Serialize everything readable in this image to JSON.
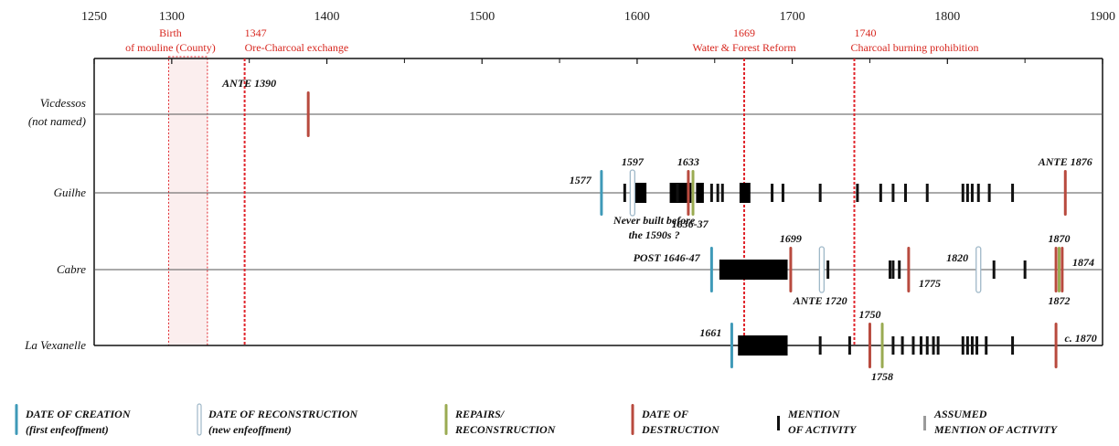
{
  "chart_data": {
    "type": "timeline",
    "xlim": [
      1250,
      1900
    ],
    "ticks": [
      1250,
      1300,
      1400,
      1500,
      1600,
      1700,
      1800,
      1900
    ],
    "minor_ticks": [
      1350,
      1450,
      1550,
      1650,
      1750,
      1850
    ],
    "grid": false,
    "events": [
      {
        "id": "county",
        "line1": "Birth",
        "line2": "of mouline (County)",
        "x_start": 1298,
        "x_end": 1323
      },
      {
        "id": "ore",
        "year_label": "1347",
        "text": "Ore-Charcoal exchange",
        "x": 1347
      },
      {
        "id": "water",
        "year_label": "1669",
        "text": "Water & Forest Reform",
        "x": 1669
      },
      {
        "id": "charcoal",
        "year_label": "1740",
        "text": "Charcoal burning prohibition",
        "x": 1740
      }
    ],
    "sites": [
      {
        "name_line1": "Vicdessos",
        "name_line2": "(not named)",
        "marks": [
          {
            "x": 1388,
            "kind": "destruction"
          }
        ],
        "bars": [],
        "annotations": [
          {
            "text": "ANTE 1390",
            "x": 1350,
            "pos": "above"
          }
        ]
      },
      {
        "name_line1": "Guilhe",
        "name_line2": "",
        "marks": [
          {
            "x": 1577,
            "kind": "creation"
          },
          {
            "x": 1597,
            "kind": "reconstruction"
          },
          {
            "x": 1633,
            "kind": "destruction"
          },
          {
            "x": 1636,
            "kind": "repairs"
          },
          {
            "x": 1592,
            "kind": "activity"
          },
          {
            "x": 1626,
            "kind": "activity"
          },
          {
            "x": 1648,
            "kind": "activity"
          },
          {
            "x": 1652,
            "kind": "activity"
          },
          {
            "x": 1655,
            "kind": "activity"
          },
          {
            "x": 1687,
            "kind": "activity"
          },
          {
            "x": 1694,
            "kind": "activity"
          },
          {
            "x": 1718,
            "kind": "activity"
          },
          {
            "x": 1742,
            "kind": "activity"
          },
          {
            "x": 1757,
            "kind": "activity"
          },
          {
            "x": 1765,
            "kind": "activity"
          },
          {
            "x": 1773,
            "kind": "activity"
          },
          {
            "x": 1787,
            "kind": "activity"
          },
          {
            "x": 1810,
            "kind": "activity"
          },
          {
            "x": 1813,
            "kind": "activity"
          },
          {
            "x": 1816,
            "kind": "activity"
          },
          {
            "x": 1820,
            "kind": "activity"
          },
          {
            "x": 1827,
            "kind": "activity"
          },
          {
            "x": 1842,
            "kind": "activity"
          },
          {
            "x": 1876,
            "kind": "destruction"
          }
        ],
        "bars": [
          [
            1596,
            1606
          ],
          [
            1621,
            1635
          ],
          [
            1638,
            1643
          ],
          [
            1666,
            1673
          ]
        ],
        "annotations": [
          {
            "text": "1577",
            "x": 1574,
            "pos": "left"
          },
          {
            "text": "1597",
            "x": 1597,
            "pos": "above"
          },
          {
            "text": "1633",
            "x": 1633,
            "pos": "above"
          },
          {
            "text": "1636-37",
            "x": 1634,
            "pos": "below"
          },
          {
            "text": "Never built before",
            "x": 1611,
            "pos": "below2"
          },
          {
            "text": "the 1590s ?",
            "x": 1611,
            "pos": "below3"
          },
          {
            "text": "ANTE 1876",
            "x": 1876,
            "pos": "above"
          }
        ]
      },
      {
        "name_line1": "Cabre",
        "name_line2": "",
        "marks": [
          {
            "x": 1648,
            "kind": "creation"
          },
          {
            "x": 1699,
            "kind": "destruction"
          },
          {
            "x": 1719,
            "kind": "reconstruction"
          },
          {
            "x": 1723,
            "kind": "activity"
          },
          {
            "x": 1763,
            "kind": "activity"
          },
          {
            "x": 1765,
            "kind": "activity"
          },
          {
            "x": 1769,
            "kind": "activity"
          },
          {
            "x": 1775,
            "kind": "destruction"
          },
          {
            "x": 1820,
            "kind": "reconstruction"
          },
          {
            "x": 1830,
            "kind": "activity"
          },
          {
            "x": 1850,
            "kind": "activity"
          },
          {
            "x": 1870,
            "kind": "destruction"
          },
          {
            "x": 1872,
            "kind": "repairs"
          },
          {
            "x": 1874,
            "kind": "destruction"
          }
        ],
        "bars": [
          [
            1653,
            1697
          ]
        ],
        "annotations": [
          {
            "text": "POST 1646-47",
            "x": 1644,
            "pos": "left-up"
          },
          {
            "text": "1699",
            "x": 1699,
            "pos": "above"
          },
          {
            "text": "ANTE 1720",
            "x": 1718,
            "pos": "below"
          },
          {
            "text": "1775",
            "x": 1778,
            "pos": "right-down"
          },
          {
            "text": "1820",
            "x": 1817,
            "pos": "left-up"
          },
          {
            "text": "1870",
            "x": 1872,
            "pos": "above"
          },
          {
            "text": "1874",
            "x": 1877,
            "pos": "right"
          },
          {
            "text": "1872",
            "x": 1872,
            "pos": "below"
          }
        ]
      },
      {
        "name_line1": "La Vexanelle",
        "name_line2": "",
        "marks": [
          {
            "x": 1661,
            "kind": "creation"
          },
          {
            "x": 1718,
            "kind": "activity"
          },
          {
            "x": 1737,
            "kind": "activity"
          },
          {
            "x": 1750,
            "kind": "destruction"
          },
          {
            "x": 1758,
            "kind": "repairs"
          },
          {
            "x": 1765,
            "kind": "activity"
          },
          {
            "x": 1771,
            "kind": "activity"
          },
          {
            "x": 1778,
            "kind": "activity"
          },
          {
            "x": 1783,
            "kind": "activity"
          },
          {
            "x": 1787,
            "kind": "activity"
          },
          {
            "x": 1791,
            "kind": "activity"
          },
          {
            "x": 1794,
            "kind": "activity"
          },
          {
            "x": 1810,
            "kind": "activity"
          },
          {
            "x": 1813,
            "kind": "activity"
          },
          {
            "x": 1816,
            "kind": "activity"
          },
          {
            "x": 1819,
            "kind": "activity"
          },
          {
            "x": 1825,
            "kind": "activity"
          },
          {
            "x": 1842,
            "kind": "activity"
          },
          {
            "x": 1870,
            "kind": "destruction"
          }
        ],
        "bars": [
          [
            1665,
            1697
          ]
        ],
        "annotations": [
          {
            "text": "1661",
            "x": 1658,
            "pos": "left"
          },
          {
            "text": "1750",
            "x": 1750,
            "pos": "above"
          },
          {
            "text": "1758",
            "x": 1758,
            "pos": "below"
          },
          {
            "text": "c. 1870",
            "x": 1872,
            "pos": "right"
          }
        ]
      }
    ],
    "legend": [
      {
        "kind": "creation",
        "line1": "DATE OF CREATION",
        "line2": "(first enfeoffment)"
      },
      {
        "kind": "reconstruction",
        "line1": "DATE OF RECONSTRUCTION",
        "line2": "(new enfeoffment)"
      },
      {
        "kind": "repairs",
        "line1": "REPAIRS/",
        "line2": "RECONSTRUCTION"
      },
      {
        "kind": "destruction",
        "line1": "DATE OF",
        "line2": "DESTRUCTION"
      },
      {
        "kind": "activity",
        "line1": "MENTION",
        "line2": "OF ACTIVITY"
      },
      {
        "kind": "assumed",
        "line1": "ASSUMED",
        "line2": "MENTION OF ACTIVITY"
      }
    ],
    "colors": {
      "creation": "#3f9ab8",
      "reconstruction": "#9fb8c8",
      "repairs": "#9aab52",
      "destruction": "#b84a3e",
      "activity": "#111111",
      "assumed": "#9a9a9a",
      "event": "#e0242b"
    }
  }
}
